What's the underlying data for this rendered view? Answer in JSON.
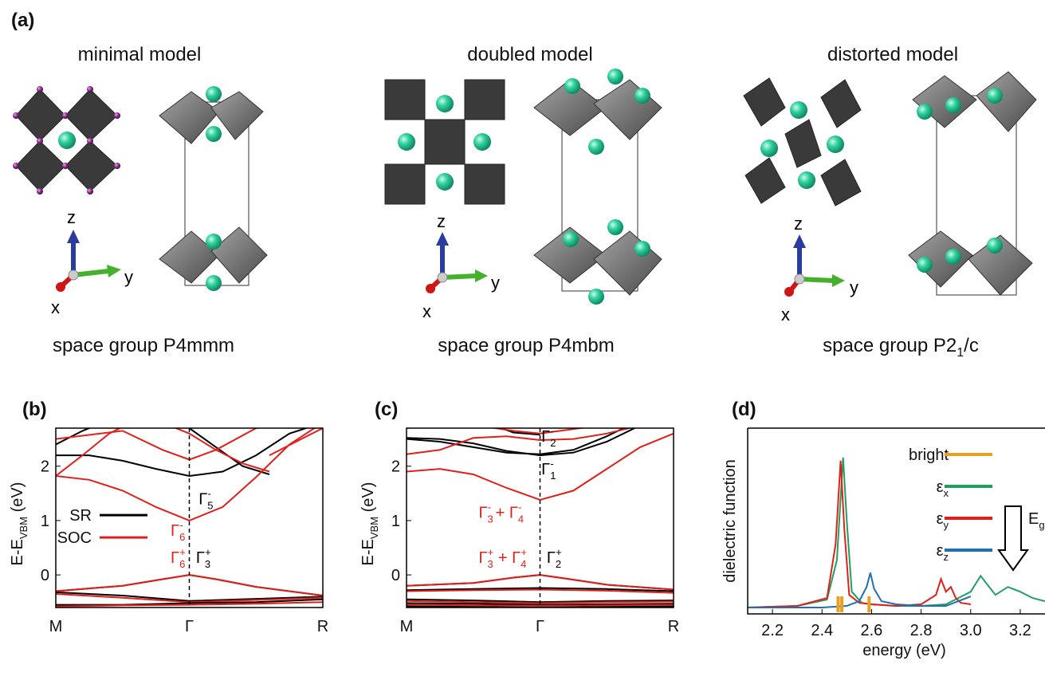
{
  "panel_a": {
    "letter": "(a)",
    "models": [
      {
        "title": "minimal model",
        "space_group": "space group P4mmm"
      },
      {
        "title": "doubled model",
        "space_group": "space group P4mbm"
      },
      {
        "title": "distorted model",
        "space_group_prefix": "space group P2",
        "space_group_sub": "1",
        "space_group_suffix": "/c"
      }
    ],
    "axes_labels": {
      "x": "x",
      "y": "y",
      "z": "z"
    },
    "colors": {
      "octahedron": "#3a3a3a",
      "octahedron_light": "#8a8a8a",
      "iodine": "#8b2a8b",
      "cation": "#2fcf9f",
      "z_arrow": "#2a3d9f",
      "y_arrow": "#44b02c",
      "x_arrow": "#d01515"
    }
  },
  "panel_b": {
    "letter": "(b)"
  },
  "panel_c": {
    "letter": "(c)"
  },
  "panel_d": {
    "letter": "(d)"
  },
  "chart_data": [
    {
      "type": "line",
      "id": "b",
      "ylabel_main": "E-E",
      "ylabel_sub": "VBM",
      "ylabel_unit": " (eV)",
      "x_ticks": [
        "M",
        "Γ",
        "R"
      ],
      "y_ticks": [
        "0",
        "1",
        "2"
      ],
      "ylim": [
        -0.6,
        2.7
      ],
      "legend": [
        {
          "name": "SR",
          "color": "#000000"
        },
        {
          "name": "SOC",
          "color": "#e0201a"
        }
      ],
      "annotations": [
        {
          "base": "Γ",
          "sup": "-",
          "sub": "5",
          "color": "#000000",
          "x": 0.07,
          "y": 1.3
        },
        {
          "base": "Γ",
          "sup": "-",
          "sub": "6",
          "color": "#e0201a",
          "x": -0.14,
          "y": 0.72
        },
        {
          "base": "Γ",
          "sup": "+",
          "sub": "6",
          "color": "#e0201a",
          "x": -0.14,
          "y": 0.22
        },
        {
          "base": "Γ",
          "sup": "+",
          "sub": "3",
          "color": "#000000",
          "x": 0.05,
          "y": 0.22
        }
      ],
      "series": [
        {
          "color": "#000000",
          "x": [
            -1.0,
            -0.75,
            -0.5,
            -0.25,
            0,
            0.25,
            0.5,
            0.75,
            1.0
          ],
          "y": [
            2.2,
            2.2,
            2.1,
            1.95,
            1.82,
            1.9,
            2.2,
            2.6,
            2.8
          ]
        },
        {
          "color": "#000000",
          "x": [
            -1.0,
            -0.8,
            -0.6,
            -0.4,
            -0.2,
            0,
            0.2,
            0.4,
            0.6
          ],
          "y": [
            2.4,
            2.65,
            2.85,
            2.95,
            2.9,
            2.7,
            2.35,
            2.0,
            1.85
          ]
        },
        {
          "color": "#e0201a",
          "x": [
            -1.0,
            -0.75,
            -0.5,
            -0.25,
            0,
            0.25,
            0.5,
            0.75,
            1.0
          ],
          "y": [
            1.82,
            1.75,
            1.55,
            1.25,
            1.0,
            1.25,
            1.8,
            2.4,
            2.8
          ]
        },
        {
          "color": "#e0201a",
          "x": [
            -1.0,
            -0.8,
            -0.6,
            -0.4,
            -0.2,
            0,
            0.2,
            0.4,
            0.6
          ],
          "y": [
            1.82,
            2.2,
            2.6,
            2.85,
            2.8,
            2.6,
            2.3,
            2.05,
            1.9
          ]
        },
        {
          "color": "#e0201a",
          "x": [
            -1.0,
            -0.5,
            -0.2,
            0,
            0.2,
            0.5,
            1.0
          ],
          "y": [
            2.5,
            2.65,
            2.3,
            2.12,
            2.3,
            2.7,
            2.9
          ]
        },
        {
          "color": "#e0201a",
          "x": [
            0.6,
            0.8,
            1.0
          ],
          "y": [
            2.2,
            2.45,
            2.7
          ]
        },
        {
          "color": "#000000",
          "x": [
            -1.0,
            -0.5,
            -0.2,
            0,
            0.2,
            0.5,
            1.0
          ],
          "y": [
            -0.3,
            -0.2,
            -0.08,
            0,
            -0.08,
            -0.22,
            -0.38
          ]
        },
        {
          "color": "#e0201a",
          "x": [
            -1.0,
            -0.5,
            -0.2,
            0,
            0.2,
            0.5,
            1.0
          ],
          "y": [
            -0.3,
            -0.2,
            -0.08,
            0,
            -0.08,
            -0.22,
            -0.38
          ]
        },
        {
          "color": "#000000",
          "x": [
            -1.0,
            -0.5,
            0,
            0.5,
            1.0
          ],
          "y": [
            -0.32,
            -0.38,
            -0.48,
            -0.44,
            -0.4
          ]
        },
        {
          "color": "#e0201a",
          "x": [
            -1.0,
            -0.5,
            0,
            0.5,
            1.0
          ],
          "y": [
            -0.35,
            -0.42,
            -0.5,
            -0.46,
            -0.42
          ]
        },
        {
          "color": "#000000",
          "x": [
            -1.0,
            -0.5,
            0,
            0.5,
            1.0
          ],
          "y": [
            -0.55,
            -0.55,
            -0.52,
            -0.5,
            -0.45
          ]
        },
        {
          "color": "#e0201a",
          "x": [
            -1.0,
            -0.5,
            0,
            0.5,
            1.0
          ],
          "y": [
            -0.58,
            -0.56,
            -0.55,
            -0.53,
            -0.5
          ]
        }
      ]
    },
    {
      "type": "line",
      "id": "c",
      "ylabel_main": "E-E",
      "ylabel_sub": "VBM",
      "ylabel_unit": " (eV)",
      "x_ticks": [
        "M",
        "Γ",
        "R"
      ],
      "y_ticks": [
        "0",
        "1",
        "2"
      ],
      "ylim": [
        -0.6,
        2.7
      ],
      "annotations": [
        {
          "base": "Γ",
          "sup": "-",
          "sub": "2",
          "color": "#000000",
          "x": 0.01,
          "y": 2.45
        },
        {
          "base": "Γ",
          "sup": "-",
          "sub": "1",
          "color": "#000000",
          "x": 0.01,
          "y": 1.85
        },
        {
          "base": "Γ",
          "sup": "-",
          "sub": "3",
          "color": "#e0201a",
          "x": -0.46,
          "y": 1.05,
          "plus": "Γ",
          "plus_sup": "-",
          "plus_sub": "4"
        },
        {
          "base": "Γ",
          "sup": "+",
          "sub": "3",
          "color": "#e0201a",
          "x": -0.46,
          "y": 0.22,
          "plus": "Γ",
          "plus_sup": "+",
          "plus_sub": "4"
        },
        {
          "base": "Γ",
          "sup": "+",
          "sub": "2",
          "color": "#000000",
          "x": 0.05,
          "y": 0.22
        }
      ],
      "series": [
        {
          "color": "#000000",
          "x": [
            -1.0,
            -0.75,
            -0.5,
            -0.25,
            0,
            0.25,
            0.5,
            0.75,
            1.0
          ],
          "y": [
            2.52,
            2.5,
            2.42,
            2.28,
            2.2,
            2.25,
            2.45,
            2.75,
            2.95
          ]
        },
        {
          "color": "#000000",
          "x": [
            -1.0,
            -0.75,
            -0.5,
            -0.25,
            0,
            0.25,
            0.5,
            0.75,
            1.0
          ],
          "y": [
            2.5,
            2.45,
            2.35,
            2.25,
            2.22,
            2.3,
            2.55,
            2.85,
            3.0
          ]
        },
        {
          "color": "#000000",
          "x": [
            -1.0,
            -0.8,
            -0.6,
            -0.4,
            -0.2,
            0
          ],
          "y": [
            2.7,
            2.8,
            2.9,
            2.8,
            2.62,
            2.58
          ]
        },
        {
          "color": "#e0201a",
          "x": [
            -1.0,
            -0.75,
            -0.5,
            -0.25,
            0,
            0.25,
            0.5,
            0.75,
            1.0
          ],
          "y": [
            2.22,
            2.3,
            2.52,
            2.55,
            2.48,
            2.5,
            2.6,
            2.75,
            2.8
          ]
        },
        {
          "color": "#e0201a",
          "x": [
            -1.0,
            -0.75,
            -0.5,
            -0.25,
            0,
            0.25,
            0.5,
            0.75,
            1.0
          ],
          "y": [
            1.9,
            1.95,
            1.85,
            1.6,
            1.38,
            1.55,
            1.95,
            2.35,
            2.6
          ]
        },
        {
          "color": "#e0201a",
          "x": [
            -1.0,
            -0.6,
            -0.2,
            0,
            0.3,
            0.7,
            1.0
          ],
          "y": [
            2.7,
            2.8,
            2.65,
            2.6,
            2.7,
            2.8,
            2.9
          ]
        },
        {
          "color": "#000000",
          "x": [
            -1.0,
            -0.5,
            -0.2,
            0,
            0.2,
            0.5,
            1.0
          ],
          "y": [
            -0.2,
            -0.15,
            -0.05,
            0,
            -0.07,
            -0.18,
            -0.27
          ]
        },
        {
          "color": "#e0201a",
          "x": [
            -1.0,
            -0.5,
            -0.2,
            0,
            0.2,
            0.5,
            1.0
          ],
          "y": [
            -0.2,
            -0.15,
            -0.05,
            0,
            -0.07,
            -0.18,
            -0.27
          ]
        },
        {
          "color": "#000000",
          "x": [
            -1.0,
            -0.5,
            0,
            0.5,
            1.0
          ],
          "y": [
            -0.28,
            -0.26,
            -0.24,
            -0.26,
            -0.3
          ]
        },
        {
          "color": "#e0201a",
          "x": [
            -1.0,
            -0.5,
            0,
            0.5,
            1.0
          ],
          "y": [
            -0.3,
            -0.28,
            -0.27,
            -0.29,
            -0.33
          ]
        },
        {
          "color": "#000000",
          "x": [
            -1.0,
            -0.5,
            0,
            0.5,
            1.0
          ],
          "y": [
            -0.45,
            -0.47,
            -0.5,
            -0.48,
            -0.47
          ]
        },
        {
          "color": "#e0201a",
          "x": [
            -1.0,
            -0.5,
            0,
            0.5,
            1.0
          ],
          "y": [
            -0.48,
            -0.5,
            -0.52,
            -0.5,
            -0.49
          ]
        },
        {
          "color": "#000000",
          "x": [
            -1.0,
            -0.5,
            0,
            0.5,
            1.0
          ],
          "y": [
            -0.52,
            -0.53,
            -0.55,
            -0.54,
            -0.53
          ]
        },
        {
          "color": "#e0201a",
          "x": [
            -1.0,
            -0.5,
            0,
            0.5,
            1.0
          ],
          "y": [
            -0.55,
            -0.56,
            -0.57,
            -0.56,
            -0.55
          ]
        },
        {
          "color": "#000000",
          "x": [
            -1.0,
            -0.5,
            0,
            0.5,
            1.0
          ],
          "y": [
            -0.58,
            -0.59,
            -0.6,
            -0.59,
            -0.58
          ]
        }
      ]
    },
    {
      "type": "line",
      "id": "d",
      "xlabel": "energy (eV)",
      "ylabel": "dielectric function",
      "xlim": [
        2.1,
        3.3
      ],
      "x_ticks": [
        "2.2",
        "2.4",
        "2.6",
        "2.8",
        "3.0",
        "3.2"
      ],
      "legend": [
        {
          "name": "bright",
          "color": "#e8a020"
        },
        {
          "name": "ε",
          "sub": "x",
          "color": "#20a060"
        },
        {
          "name": "ε",
          "sub": "y",
          "color": "#e0201a"
        },
        {
          "name": "ε",
          "sub": "z",
          "color": "#1f6fb5"
        }
      ],
      "gap_label": {
        "main": "E",
        "sub": "g"
      },
      "bright_transitions": [
        2.465,
        2.48,
        2.59
      ],
      "series": [
        {
          "name": "ε_x",
          "color": "#20a060",
          "x": [
            2.1,
            2.3,
            2.42,
            2.46,
            2.485,
            2.5,
            2.52,
            2.56,
            2.6,
            2.7,
            2.8,
            2.9,
            2.95,
            3.0,
            3.04,
            3.07,
            3.1,
            3.15,
            3.2,
            3.25,
            3.3
          ],
          "y": [
            0.0,
            0.01,
            0.05,
            0.3,
            0.95,
            0.55,
            0.1,
            0.03,
            0.02,
            0.01,
            0.01,
            0.02,
            0.06,
            0.1,
            0.2,
            0.14,
            0.08,
            0.13,
            0.1,
            0.06,
            0.04
          ]
        },
        {
          "name": "ε_y",
          "color": "#e0201a",
          "x": [
            2.1,
            2.3,
            2.42,
            2.455,
            2.475,
            2.49,
            2.51,
            2.55,
            2.6,
            2.7,
            2.8,
            2.86,
            2.88,
            2.9,
            2.92,
            2.94,
            2.96,
            3.0
          ],
          "y": [
            0.0,
            0.01,
            0.06,
            0.4,
            0.93,
            0.5,
            0.08,
            0.03,
            0.02,
            0.01,
            0.02,
            0.08,
            0.18,
            0.1,
            0.13,
            0.06,
            0.03,
            0.02
          ]
        },
        {
          "name": "ε_z",
          "color": "#1f6fb5",
          "x": [
            2.1,
            2.4,
            2.5,
            2.55,
            2.58,
            2.595,
            2.61,
            2.64,
            2.7,
            2.8,
            2.9,
            2.95,
            3.0
          ],
          "y": [
            0.0,
            0.0,
            0.01,
            0.04,
            0.13,
            0.22,
            0.12,
            0.04,
            0.02,
            0.01,
            0.01,
            0.04,
            0.07
          ]
        }
      ]
    }
  ]
}
